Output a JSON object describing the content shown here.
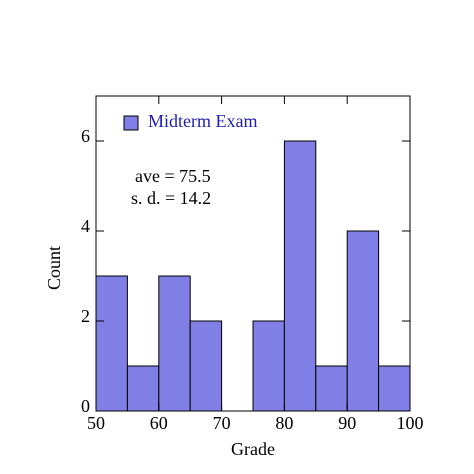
{
  "chart_data": {
    "type": "histogram",
    "xlabel": "Grade",
    "ylabel": "Count",
    "bins": [
      50,
      55,
      60,
      65,
      70,
      75,
      80,
      85,
      90,
      95,
      100
    ],
    "counts": [
      3,
      1,
      3,
      2,
      0,
      2,
      6,
      1,
      4,
      1
    ],
    "series_name": "Midterm Exam",
    "color": "#7f7fe6",
    "legend": "upper left",
    "annotations": [
      "ave = 75.5",
      "s. d. = 14.2"
    ],
    "xlim": [
      50,
      100
    ],
    "xticks": [
      50,
      60,
      70,
      80,
      90,
      100
    ],
    "ylim": [
      0,
      7
    ],
    "yticks": [
      0,
      2,
      4,
      6
    ]
  }
}
